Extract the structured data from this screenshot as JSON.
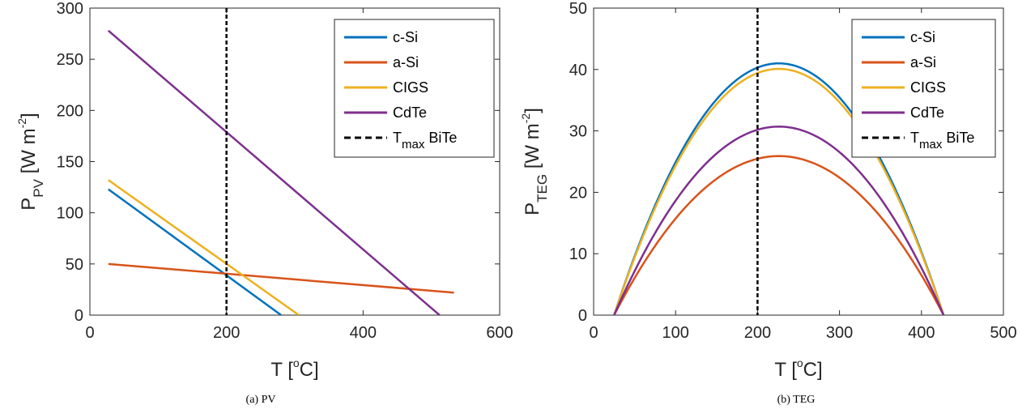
{
  "chart_data": [
    {
      "id": "pv",
      "type": "line",
      "caption": "(a)  PV",
      "xlabel": {
        "main": "T [",
        "sup": "o",
        "rest": "C]"
      },
      "ylabel": {
        "main": "P",
        "sub": "PV",
        "rest": " [W m",
        "sup": "-2",
        "end": "]"
      },
      "xlim": [
        0,
        600
      ],
      "ylim": [
        0,
        300
      ],
      "xticks": [
        0,
        200,
        400,
        600
      ],
      "yticks": [
        0,
        50,
        100,
        150,
        200,
        250,
        300
      ],
      "grid": false,
      "legend_position": "top-right",
      "series": [
        {
          "name": "c-Si",
          "color": "#0072BD",
          "x": [
            27,
            280
          ],
          "y": [
            123,
            0
          ]
        },
        {
          "name": "a-Si",
          "color": "#D95319",
          "x": [
            27,
            533
          ],
          "y": [
            50,
            22
          ]
        },
        {
          "name": "CIGS",
          "color": "#EDB120",
          "x": [
            27,
            306
          ],
          "y": [
            132,
            0
          ]
        },
        {
          "name": "CdTe",
          "color": "#7E2F8E",
          "x": [
            27,
            512
          ],
          "y": [
            278,
            0
          ]
        }
      ],
      "vline": {
        "name": "T",
        "sub": "max",
        "suffix": " BiTe",
        "x": 200,
        "color": "#000000"
      }
    },
    {
      "id": "teg",
      "type": "line",
      "caption": "(b)  TEG",
      "xlabel": {
        "main": "T [",
        "sup": "o",
        "rest": "C]"
      },
      "ylabel": {
        "main": "P",
        "sub": "TEG",
        "rest": " [W m",
        "sup": "-2",
        "end": "]"
      },
      "xlim": [
        0,
        500
      ],
      "ylim": [
        0,
        50
      ],
      "xticks": [
        0,
        100,
        200,
        300,
        400,
        500
      ],
      "yticks": [
        0,
        10,
        20,
        30,
        40,
        50
      ],
      "grid": false,
      "legend_position": "top-right",
      "parabola_range": [
        25,
        427
      ],
      "series": [
        {
          "name": "c-Si",
          "color": "#0072BD",
          "peak_x": 226,
          "peak_y": 41.0
        },
        {
          "name": "a-Si",
          "color": "#D95319",
          "peak_x": 226,
          "peak_y": 25.9
        },
        {
          "name": "CIGS",
          "color": "#EDB120",
          "peak_x": 226,
          "peak_y": 40.1
        },
        {
          "name": "CdTe",
          "color": "#7E2F8E",
          "peak_x": 226,
          "peak_y": 30.7
        }
      ],
      "vline": {
        "name": "T",
        "sub": "max",
        "suffix": " BiTe",
        "x": 200,
        "color": "#000000"
      }
    }
  ]
}
